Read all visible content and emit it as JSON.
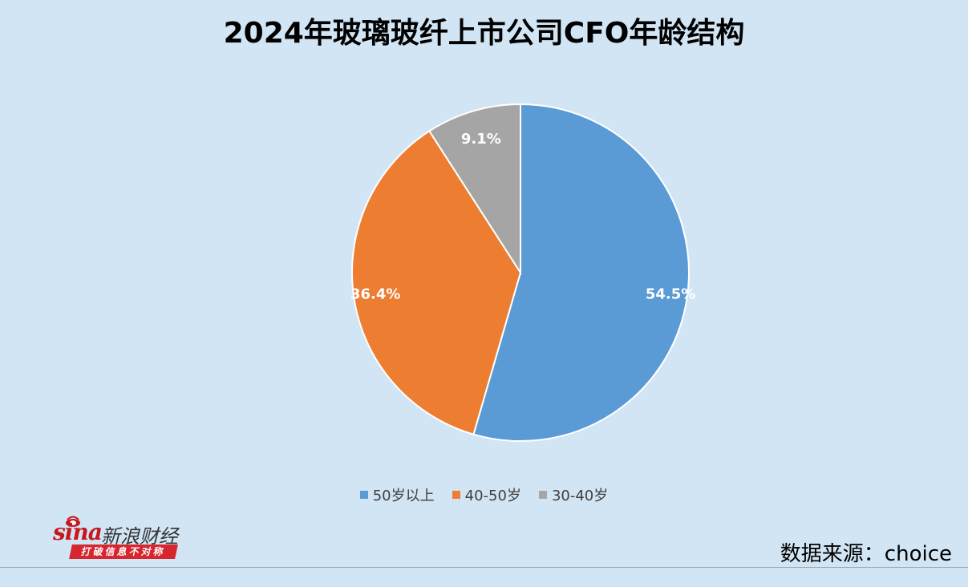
{
  "title": "2024年玻璃玻纤上市公司CFO年龄结构",
  "source": "数据来源：choice",
  "logo": {
    "brand": "sina",
    "name": "新浪财经",
    "slogan": "打破信息不对称"
  },
  "chart_data": {
    "type": "pie",
    "categories": [
      "50岁以上",
      "40-50岁",
      "30-40岁"
    ],
    "values": [
      54.5,
      36.4,
      9.1
    ],
    "labels": [
      "54.5%",
      "36.4%",
      "9.1%"
    ],
    "colors": [
      "#5b9bd5",
      "#ed7d31",
      "#a5a5a5"
    ],
    "title": "2024年玻璃玻纤上市公司CFO年龄结构",
    "legend": "bottom",
    "start_angle": "12 o'clock",
    "direction": "clockwise"
  }
}
